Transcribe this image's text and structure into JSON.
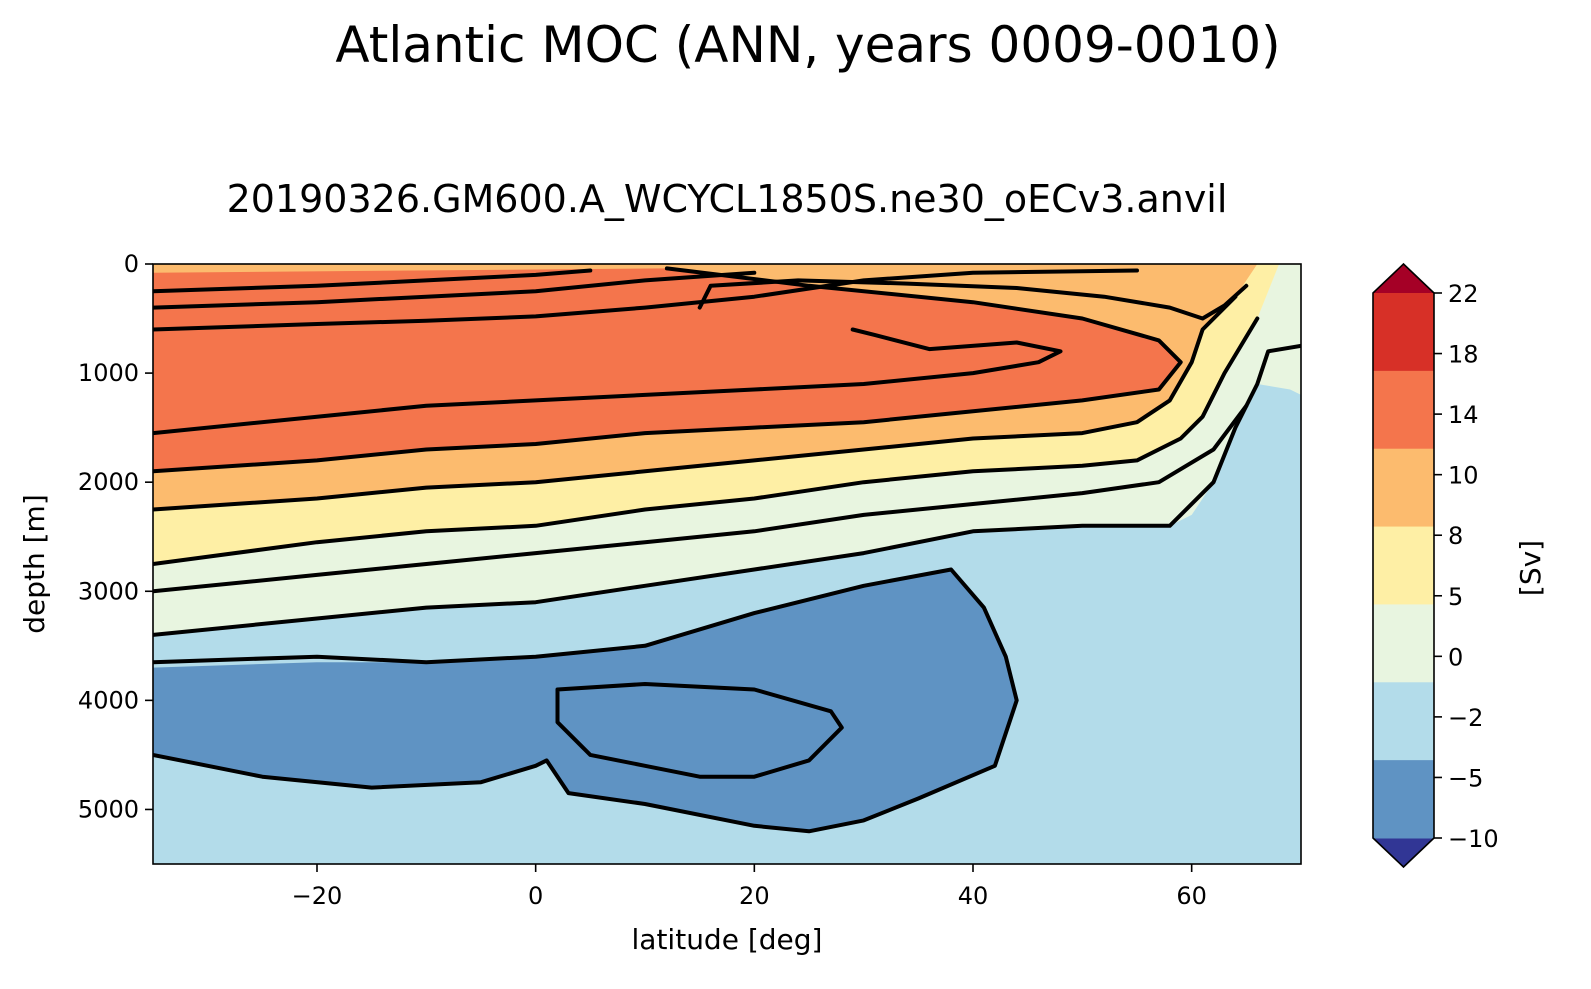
{
  "chart_data": {
    "type": "contourf",
    "title": "Atlantic MOC (ANN, years 0009-0010)",
    "subtitle": "20190326.GM600.A_WCYCL1850S.ne30_oECv3.anvil",
    "xlabel": "latitude [deg]",
    "ylabel": "depth [m]",
    "colorbar_label": "[Sv]",
    "xlim": [
      -35,
      70
    ],
    "ylim": [
      5500,
      0
    ],
    "x_ticks": [
      -20,
      0,
      20,
      40,
      60
    ],
    "x_tick_labels": [
      "−20",
      "0",
      "20",
      "40",
      "60"
    ],
    "y_ticks": [
      0,
      1000,
      2000,
      3000,
      4000,
      5000
    ],
    "y_tick_labels": [
      "0",
      "1000",
      "2000",
      "3000",
      "4000",
      "5000"
    ],
    "levels": [
      -10,
      -5,
      -2,
      0,
      5,
      8,
      10,
      14,
      18,
      22
    ],
    "level_labels": [
      "−10",
      "−5",
      "−2",
      "0",
      "5",
      "8",
      "10",
      "14",
      "18",
      "22"
    ],
    "level_colors": [
      "#313695",
      "#5f93c3",
      "#b3dcea",
      "#e8f5e0",
      "#feefa5",
      "#fcbb6e",
      "#f4754c",
      "#d73027",
      "#a50026"
    ],
    "extend": "both",
    "background_color": "#b3dcea",
    "bands": [
      {
        "level": 0,
        "color": "#e8f5e0",
        "points": [
          [
            -35,
            0
          ],
          [
            70,
            0
          ],
          [
            70,
            1200
          ],
          [
            69,
            1150
          ],
          [
            66,
            1100
          ],
          [
            64,
            1500
          ],
          [
            62,
            2000
          ],
          [
            60,
            2300
          ],
          [
            58,
            2400
          ],
          [
            50,
            2400
          ],
          [
            40,
            2450
          ],
          [
            30,
            2650
          ],
          [
            20,
            2800
          ],
          [
            10,
            2950
          ],
          [
            0,
            3100
          ],
          [
            -10,
            3150
          ],
          [
            -20,
            3250
          ],
          [
            -35,
            3400
          ]
        ]
      },
      {
        "level": 5,
        "color": "#feefa5",
        "points": [
          [
            -35,
            0
          ],
          [
            68,
            0
          ],
          [
            66,
            500
          ],
          [
            63,
            1000
          ],
          [
            61,
            1400
          ],
          [
            59,
            1600
          ],
          [
            55,
            1800
          ],
          [
            50,
            1850
          ],
          [
            40,
            1900
          ],
          [
            30,
            2000
          ],
          [
            20,
            2150
          ],
          [
            10,
            2250
          ],
          [
            0,
            2400
          ],
          [
            -10,
            2450
          ],
          [
            -20,
            2550
          ],
          [
            -35,
            2750
          ]
        ]
      },
      {
        "level": 8,
        "color": "#fcbb6e",
        "points": [
          [
            -35,
            0
          ],
          [
            66,
            0
          ],
          [
            64,
            300
          ],
          [
            61,
            600
          ],
          [
            60,
            900
          ],
          [
            58,
            1250
          ],
          [
            55,
            1450
          ],
          [
            50,
            1550
          ],
          [
            40,
            1600
          ],
          [
            30,
            1700
          ],
          [
            20,
            1800
          ],
          [
            10,
            1900
          ],
          [
            0,
            2000
          ],
          [
            -10,
            2050
          ],
          [
            -20,
            2150
          ],
          [
            -35,
            2250
          ]
        ]
      },
      {
        "level": 10,
        "color": "#f4754c",
        "points": [
          [
            -35,
            80
          ],
          [
            0,
            50
          ],
          [
            12,
            40
          ],
          [
            25,
            200
          ],
          [
            40,
            350
          ],
          [
            50,
            500
          ],
          [
            57,
            700
          ],
          [
            59,
            900
          ],
          [
            57,
            1150
          ],
          [
            50,
            1250
          ],
          [
            40,
            1350
          ],
          [
            30,
            1450
          ],
          [
            20,
            1500
          ],
          [
            10,
            1550
          ],
          [
            0,
            1650
          ],
          [
            -10,
            1700
          ],
          [
            -20,
            1800
          ],
          [
            -35,
            1900
          ]
        ]
      },
      {
        "level": -2,
        "color": "#5f93c3",
        "points": [
          [
            -35,
            3700
          ],
          [
            -20,
            3650
          ],
          [
            -10,
            3650
          ],
          [
            0,
            3600
          ],
          [
            10,
            3500
          ],
          [
            20,
            3200
          ],
          [
            30,
            2950
          ],
          [
            38,
            2800
          ],
          [
            41,
            3150
          ],
          [
            43,
            3600
          ],
          [
            44,
            4000
          ],
          [
            42,
            4600
          ],
          [
            35,
            4900
          ],
          [
            30,
            5100
          ],
          [
            25,
            5200
          ],
          [
            20,
            5150
          ],
          [
            10,
            4950
          ],
          [
            3,
            4850
          ],
          [
            1,
            4550
          ],
          [
            0,
            4600
          ],
          [
            -5,
            4750
          ],
          [
            -15,
            4800
          ],
          [
            -25,
            4700
          ],
          [
            -35,
            4500
          ]
        ]
      },
      {
        "level": -5,
        "color": "#5f93c3",
        "points": [
          [
            2,
            3900
          ],
          [
            10,
            3850
          ],
          [
            20,
            3900
          ],
          [
            27,
            4100
          ],
          [
            28,
            4250
          ],
          [
            25,
            4550
          ],
          [
            20,
            4700
          ],
          [
            15,
            4700
          ],
          [
            10,
            4600
          ],
          [
            5,
            4500
          ],
          [
            2,
            4200
          ]
        ]
      }
    ],
    "contours": [
      [
        [
          -35,
          3400
        ],
        [
          -20,
          3250
        ],
        [
          -10,
          3150
        ],
        [
          0,
          3100
        ],
        [
          10,
          2950
        ],
        [
          20,
          2800
        ],
        [
          30,
          2650
        ],
        [
          40,
          2450
        ],
        [
          50,
          2400
        ],
        [
          58,
          2400
        ],
        [
          62,
          2000
        ],
        [
          64,
          1500
        ],
        [
          66,
          1100
        ],
        [
          67,
          800
        ],
        [
          70,
          750
        ]
      ],
      [
        [
          -35,
          3000
        ],
        [
          -20,
          2850
        ],
        [
          -10,
          2750
        ],
        [
          0,
          2650
        ],
        [
          10,
          2550
        ],
        [
          20,
          2450
        ],
        [
          30,
          2300
        ],
        [
          40,
          2200
        ],
        [
          50,
          2100
        ],
        [
          57,
          2000
        ],
        [
          62,
          1700
        ],
        [
          65,
          1300
        ]
      ],
      [
        [
          -35,
          2750
        ],
        [
          -20,
          2550
        ],
        [
          -10,
          2450
        ],
        [
          0,
          2400
        ],
        [
          10,
          2250
        ],
        [
          20,
          2150
        ],
        [
          30,
          2000
        ],
        [
          40,
          1900
        ],
        [
          50,
          1850
        ],
        [
          55,
          1800
        ],
        [
          59,
          1600
        ],
        [
          61,
          1400
        ],
        [
          63,
          1000
        ],
        [
          66,
          500
        ]
      ],
      [
        [
          -35,
          2250
        ],
        [
          -20,
          2150
        ],
        [
          -10,
          2050
        ],
        [
          0,
          2000
        ],
        [
          10,
          1900
        ],
        [
          20,
          1800
        ],
        [
          30,
          1700
        ],
        [
          40,
          1600
        ],
        [
          50,
          1550
        ],
        [
          55,
          1450
        ],
        [
          58,
          1250
        ],
        [
          60,
          900
        ],
        [
          61,
          600
        ],
        [
          64,
          300
        ]
      ],
      [
        [
          -35,
          1900
        ],
        [
          -20,
          1800
        ],
        [
          -10,
          1700
        ],
        [
          0,
          1650
        ],
        [
          10,
          1550
        ],
        [
          20,
          1500
        ],
        [
          30,
          1450
        ],
        [
          40,
          1350
        ],
        [
          50,
          1250
        ],
        [
          57,
          1150
        ],
        [
          59,
          900
        ],
        [
          57,
          700
        ],
        [
          50,
          500
        ],
        [
          40,
          350
        ],
        [
          25,
          200
        ],
        [
          12,
          40
        ]
      ],
      [
        [
          -35,
          1550
        ],
        [
          -20,
          1400
        ],
        [
          -10,
          1300
        ],
        [
          0,
          1250
        ],
        [
          10,
          1200
        ],
        [
          20,
          1150
        ],
        [
          30,
          1100
        ],
        [
          40,
          1000
        ],
        [
          46,
          900
        ],
        [
          48,
          800
        ],
        [
          44,
          720
        ],
        [
          36,
          780
        ],
        [
          31,
          650
        ],
        [
          29,
          600
        ]
      ],
      [
        [
          -35,
          600
        ],
        [
          -20,
          550
        ],
        [
          -10,
          520
        ],
        [
          0,
          480
        ],
        [
          10,
          400
        ],
        [
          20,
          300
        ],
        [
          30,
          150
        ],
        [
          40,
          80
        ],
        [
          55,
          60
        ]
      ],
      [
        [
          -35,
          250
        ],
        [
          -20,
          200
        ],
        [
          -10,
          150
        ],
        [
          0,
          100
        ],
        [
          5,
          60
        ]
      ],
      [
        [
          -35,
          400
        ],
        [
          -20,
          350
        ],
        [
          -10,
          300
        ],
        [
          0,
          250
        ],
        [
          10,
          150
        ],
        [
          20,
          80
        ]
      ],
      [
        [
          15,
          400
        ],
        [
          16,
          200
        ],
        [
          24,
          150
        ],
        [
          34,
          180
        ],
        [
          44,
          220
        ],
        [
          52,
          300
        ],
        [
          58,
          400
        ],
        [
          61,
          500
        ],
        [
          63,
          380
        ],
        [
          65,
          200
        ]
      ],
      [
        [
          -35,
          3650
        ],
        [
          -20,
          3600
        ],
        [
          -10,
          3650
        ],
        [
          0,
          3600
        ],
        [
          10,
          3500
        ],
        [
          20,
          3200
        ],
        [
          30,
          2950
        ],
        [
          38,
          2800
        ],
        [
          41,
          3150
        ],
        [
          43,
          3600
        ],
        [
          44,
          4000
        ],
        [
          42,
          4600
        ],
        [
          35,
          4900
        ],
        [
          30,
          5100
        ],
        [
          25,
          5200
        ],
        [
          20,
          5150
        ],
        [
          10,
          4950
        ],
        [
          3,
          4850
        ],
        [
          1,
          4550
        ],
        [
          0,
          4600
        ],
        [
          -5,
          4750
        ],
        [
          -15,
          4800
        ],
        [
          -25,
          4700
        ],
        [
          -35,
          4500
        ]
      ],
      [
        [
          2,
          3900
        ],
        [
          10,
          3850
        ],
        [
          20,
          3900
        ],
        [
          27,
          4100
        ],
        [
          28,
          4250
        ],
        [
          25,
          4550
        ],
        [
          20,
          4700
        ],
        [
          15,
          4700
        ],
        [
          10,
          4600
        ],
        [
          5,
          4500
        ],
        [
          2,
          4200
        ],
        [
          2,
          3900
        ]
      ]
    ]
  }
}
